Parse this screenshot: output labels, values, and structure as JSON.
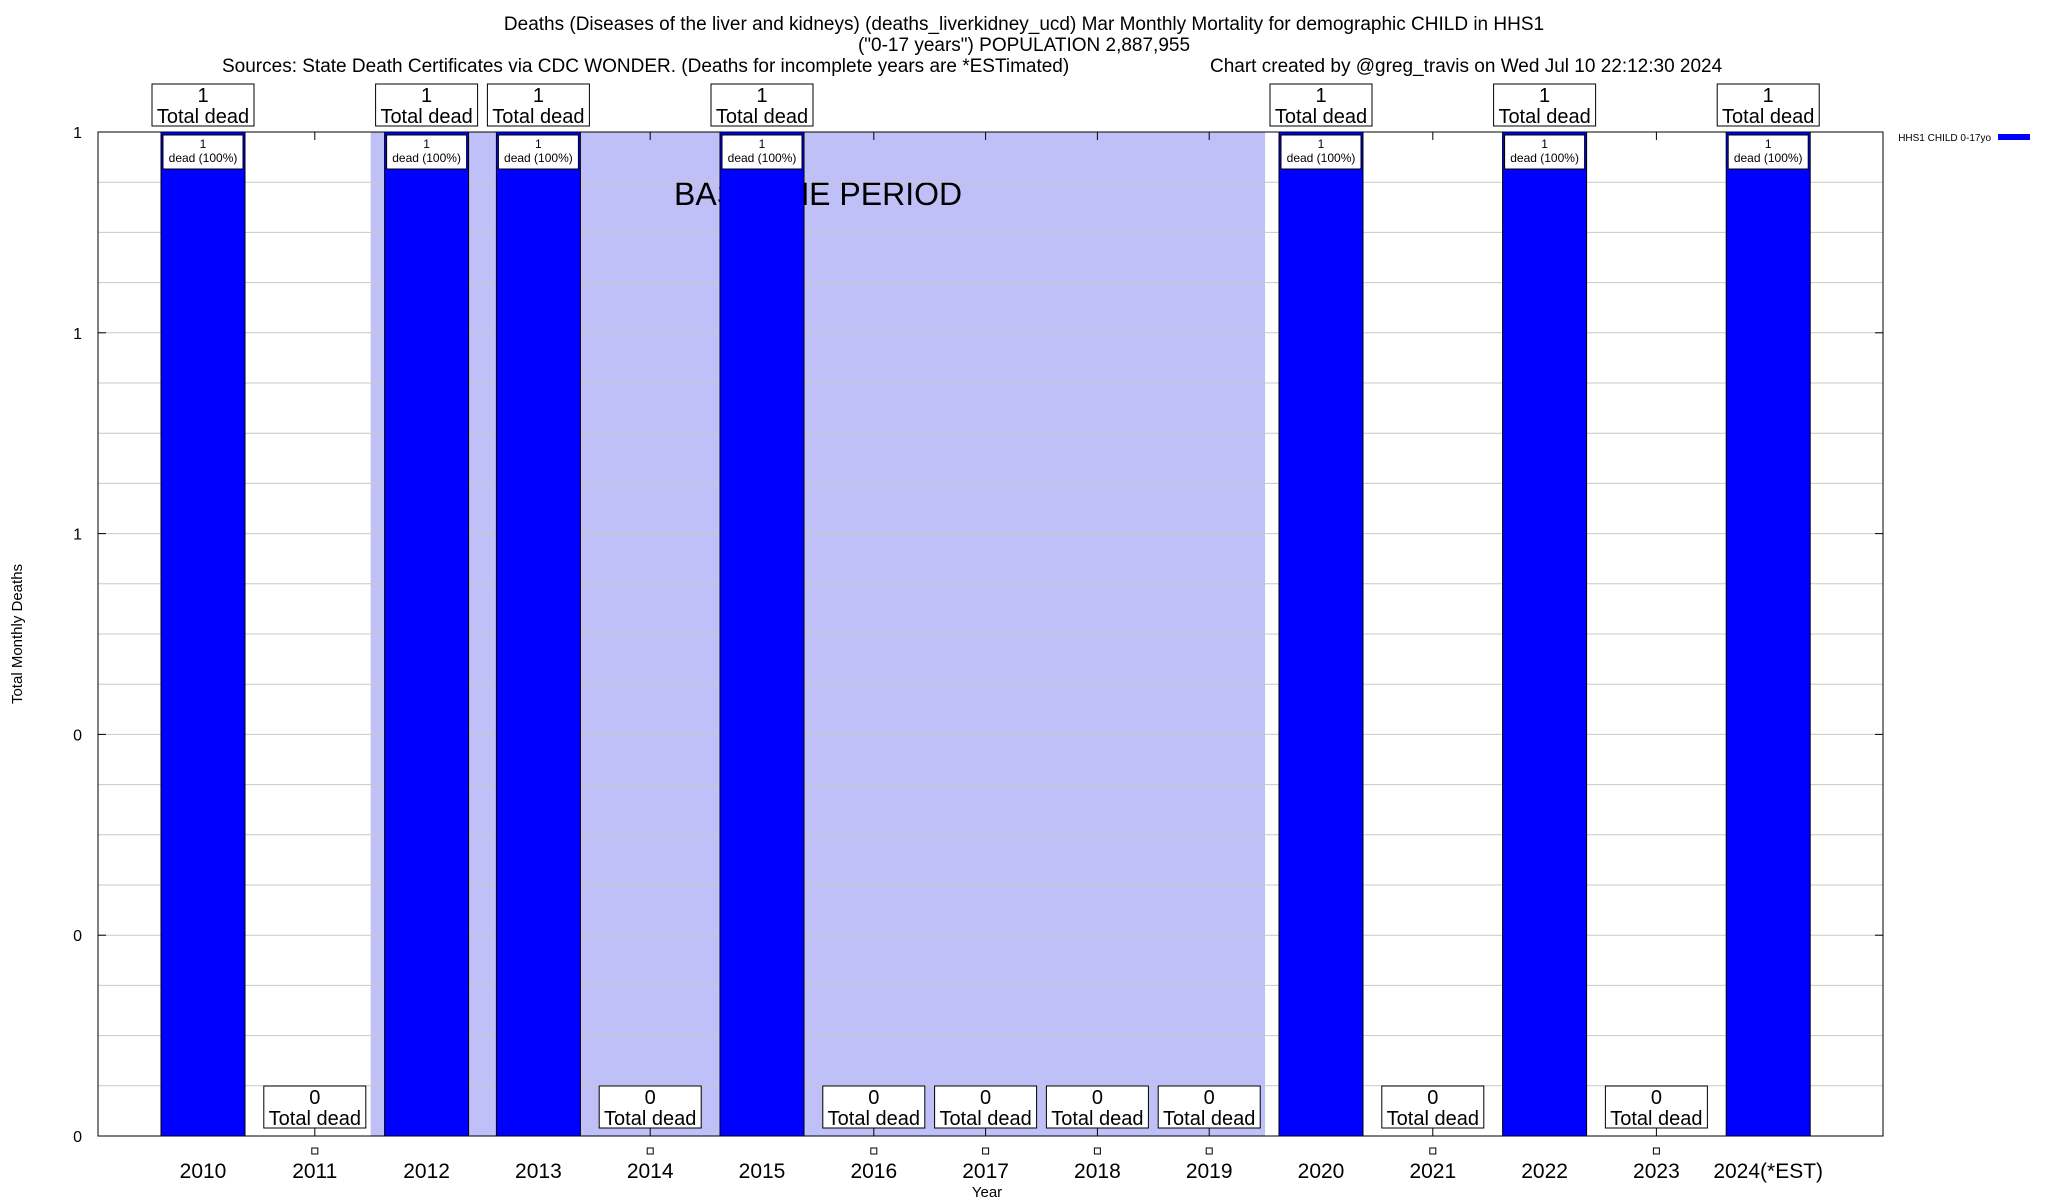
{
  "header": {
    "title_line1": "Deaths (Diseases of the liver and kidneys) (deaths_liverkidney_ucd) Mar Monthly Mortality for demographic CHILD in HHS1",
    "title_line2": "(\"0-17 years\") POPULATION 2,887,955",
    "sources": "Sources: State Death Certificates via CDC WONDER. (Deaths for incomplete years are *ESTimated)",
    "credit": "Chart created by @greg_travis on Wed Jul 10 22:12:30 2024"
  },
  "chart_data": {
    "type": "bar",
    "categories": [
      "2010",
      "2011",
      "2012",
      "2013",
      "2014",
      "2015",
      "2016",
      "2017",
      "2018",
      "2019",
      "2020",
      "2021",
      "2022",
      "2023",
      "2024(*EST)"
    ],
    "series": [
      {
        "name": "HHS1 CHILD 0-17yo",
        "values": [
          1,
          0,
          1,
          1,
          0,
          1,
          0,
          0,
          0,
          0,
          1,
          0,
          1,
          0,
          1
        ]
      }
    ],
    "total_labels": [
      "1\nTotal dead",
      "0\nTotal dead",
      "1\nTotal dead",
      "1\nTotal dead",
      "0\nTotal dead",
      "1\nTotal dead",
      "0\nTotal dead",
      "0\nTotal dead",
      "0\nTotal dead",
      "0\nTotal dead",
      "1\nTotal dead",
      "0\nTotal dead",
      "1\nTotal dead",
      "0\nTotal dead",
      "1\nTotal dead"
    ],
    "bar_labels": [
      "1\ndead (100%)",
      "",
      "1\ndead (100%)",
      "1\ndead (100%)",
      "",
      "1\ndead (100%)",
      "",
      "",
      "",
      "",
      "1\ndead (100%)",
      "",
      "1\ndead (100%)",
      "",
      "1\ndead (100%)"
    ],
    "ylim": [
      0,
      1
    ],
    "ytick_values": [
      0,
      0.2,
      0.4,
      0.6,
      0.8,
      1
    ],
    "ytick_labels": [
      "0",
      "0",
      "0",
      "1",
      "1",
      "1"
    ],
    "xlabel": "Year",
    "ylabel": "Total Monthly Deaths",
    "baseline_period": {
      "label": "BASELINE PERIOD",
      "start": "2012",
      "end": "2019"
    },
    "grid": true,
    "legend_position": "top-right",
    "colors": {
      "bar": "#0000ff",
      "baseline": "#c0c0f8",
      "grid": "#c8c8c8",
      "bar_edge": "#000000"
    }
  }
}
